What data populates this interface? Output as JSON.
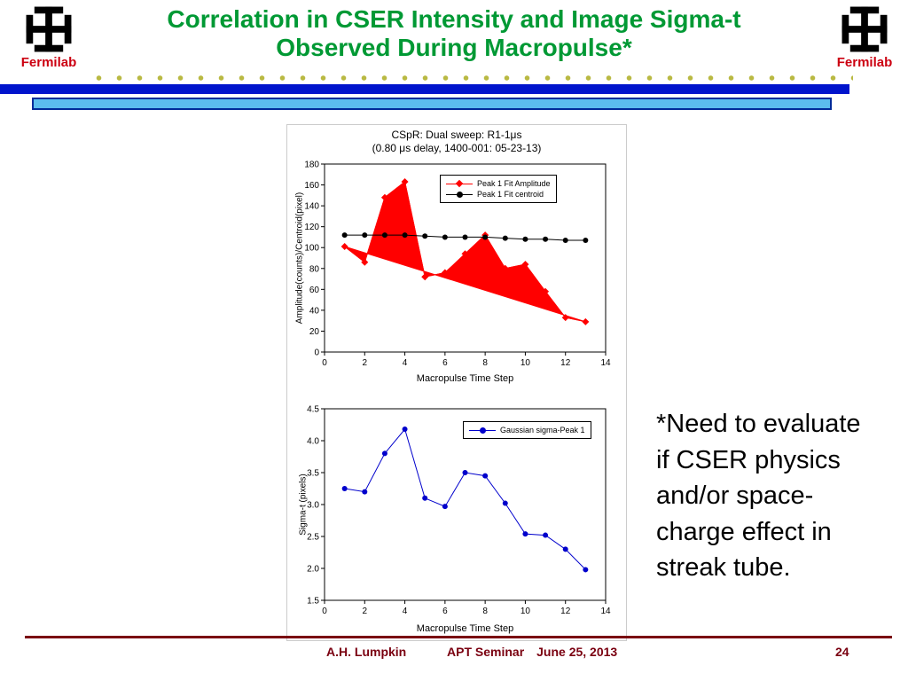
{
  "header": {
    "title_line1": "Correlation in CSER Intensity and Image Sigma-t",
    "title_line2": "Observed During Macropulse*",
    "logo_label_left": "Fermilab",
    "logo_label_right": "Fermilab"
  },
  "note": {
    "text": "*Need to evaluate if CSER physics and/or space-charge effect in streak tube."
  },
  "footer": {
    "author": "A.H. Lumpkin",
    "seminar": "APT Seminar",
    "date": "June 25, 2013",
    "page_number": "24"
  },
  "colors": {
    "title_green": "#009934",
    "fermilab_red": "#cc0011",
    "bar_blue": "#0014cc",
    "bar_light_blue": "#5bbdee",
    "bar_border": "#002b99",
    "footer_maroon": "#7a0010",
    "dot_olive": "#b9b942"
  },
  "chart_data": [
    {
      "type": "area",
      "title_line1": "CSpR: Dual sweep: R1-1μs",
      "title_line2": "(0.80 μs delay, 1400-001: 05-23-13)",
      "xlabel": "Macropulse Time Step",
      "ylabel": "Amplitude(counts)/Centroid(pixel)",
      "xlim": [
        0,
        14
      ],
      "ylim": [
        0,
        180
      ],
      "xticks": [
        "0",
        "2",
        "4",
        "6",
        "8",
        "10",
        "12",
        "14"
      ],
      "yticks": [
        "0",
        "20",
        "40",
        "60",
        "80",
        "100",
        "120",
        "140",
        "160",
        "180"
      ],
      "grid": false,
      "legend_position": "top-center",
      "x": [
        1,
        2,
        3,
        4,
        5,
        6,
        7,
        8,
        9,
        10,
        11,
        12,
        13
      ],
      "series": [
        {
          "name": "Peak 1 Fit Amplitude",
          "color": "#ff0000",
          "marker": "diamond",
          "fill": true,
          "values": [
            101,
            86,
            148,
            163,
            72,
            76,
            94,
            112,
            80,
            84,
            58,
            33,
            29
          ]
        },
        {
          "name": "Peak 1  Fit centroid",
          "color": "#000000",
          "marker": "circle",
          "fill": false,
          "values": [
            112,
            112,
            112,
            112,
            111,
            110,
            110,
            110,
            109,
            108,
            108,
            107,
            107
          ]
        }
      ]
    },
    {
      "type": "line",
      "xlabel": "Macropulse Time Step",
      "ylabel": "Sigma-t (pixels)",
      "xlim": [
        0,
        14
      ],
      "ylim": [
        1.5,
        4.5
      ],
      "xticks": [
        "0",
        "2",
        "4",
        "6",
        "8",
        "10",
        "12",
        "14"
      ],
      "yticks": [
        "1.5",
        "2.0",
        "2.5",
        "3.0",
        "3.5",
        "4.0",
        "4.5"
      ],
      "grid": false,
      "legend_position": "top-center",
      "x": [
        1,
        2,
        3,
        4,
        5,
        6,
        7,
        8,
        9,
        10,
        11,
        12,
        13
      ],
      "series": [
        {
          "name": "Gaussian sigma-Peak 1",
          "color": "#0000cc",
          "marker": "circle",
          "fill": false,
          "values": [
            3.25,
            3.2,
            3.8,
            4.18,
            3.1,
            2.97,
            3.5,
            3.45,
            3.02,
            2.54,
            2.52,
            2.3,
            1.98
          ]
        }
      ]
    }
  ]
}
